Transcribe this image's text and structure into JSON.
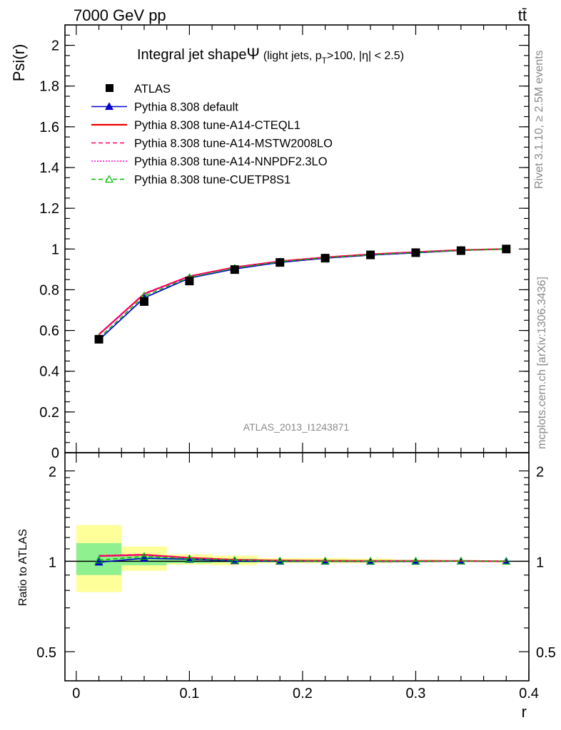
{
  "header": {
    "left": "7000 GeV pp",
    "right": "tt̄"
  },
  "side_labels": {
    "rivet": "Rivet 3.1.10, ≥ 2.5M events",
    "mcplots": "mcplots.cern.ch [arXiv:1306.3436]"
  },
  "watermark": "ATLAS_2013_I1243871",
  "chart_data": [
    {
      "type": "line",
      "title_main": "Integral jet shape",
      "title_symbol": "Ψ",
      "title_cond_a": "(light jets, p",
      "title_cond_sub": "T",
      "title_cond_b": ">100, |η| < 2.5)",
      "ylabel": "Psi(r)",
      "xlim": [
        -0.01,
        0.4
      ],
      "ylim": [
        0,
        2.1
      ],
      "yticks": [
        "0",
        "0.2",
        "0.4",
        "0.6",
        "0.8",
        "1",
        "1.2",
        "1.4",
        "1.6",
        "1.8",
        "2"
      ],
      "legend_position": "top-left",
      "x": [
        0.02,
        0.06,
        0.1,
        0.14,
        0.18,
        0.22,
        0.26,
        0.3,
        0.34,
        0.38
      ],
      "series": [
        {
          "name": "ATLAS",
          "style": "data",
          "color": "#000000",
          "values": [
            0.557,
            0.742,
            0.843,
            0.899,
            0.934,
            0.955,
            0.971,
            0.982,
            0.992,
            1.0
          ]
        },
        {
          "name": "Pythia 8.308 default",
          "style": "solid-triangle",
          "color": "#0000cc",
          "values": [
            0.553,
            0.76,
            0.857,
            0.902,
            0.934,
            0.955,
            0.97,
            0.981,
            0.993,
            1.0
          ]
        },
        {
          "name": "Pythia 8.308 tune-A14-CTEQL1",
          "style": "solid",
          "color": "#ee0000",
          "values": [
            0.58,
            0.78,
            0.866,
            0.91,
            0.94,
            0.959,
            0.974,
            0.985,
            0.995,
            1.0
          ]
        },
        {
          "name": "Pythia 8.308 tune-A14-MSTW2008LO",
          "style": "dashed",
          "color": "#ff0066",
          "values": [
            0.582,
            0.782,
            0.867,
            0.91,
            0.94,
            0.959,
            0.974,
            0.985,
            0.995,
            1.0
          ]
        },
        {
          "name": "Pythia 8.308 tune-A14-NNPDF2.3LO",
          "style": "dotted",
          "color": "#ff00cc",
          "values": [
            0.579,
            0.779,
            0.865,
            0.909,
            0.939,
            0.958,
            0.973,
            0.985,
            0.995,
            1.0
          ]
        },
        {
          "name": "Pythia 8.308 tune-CUETP8S1",
          "style": "dashed-open-triangle",
          "color": "#00bb00",
          "values": [
            0.562,
            0.77,
            0.86,
            0.906,
            0.937,
            0.957,
            0.972,
            0.983,
            0.994,
            1.0
          ]
        }
      ]
    },
    {
      "type": "line",
      "ylabel": "Ratio to ATLAS",
      "xlabel": "r",
      "xlim": [
        -0.01,
        0.4
      ],
      "ylim": [
        0.4,
        2.3
      ],
      "log_y": true,
      "yticks": [
        "0.5",
        "1",
        "2"
      ],
      "xticks": [
        "0",
        "0.1",
        "0.2",
        "0.3",
        "0.4"
      ],
      "bins": [
        [
          0.0,
          0.04
        ],
        [
          0.04,
          0.08
        ],
        [
          0.08,
          0.12
        ],
        [
          0.12,
          0.16
        ],
        [
          0.16,
          0.2
        ],
        [
          0.2,
          0.24
        ],
        [
          0.24,
          0.28
        ],
        [
          0.28,
          0.32
        ],
        [
          0.32,
          0.36
        ],
        [
          0.36,
          0.4
        ]
      ],
      "band_stat": [
        [
          0.9,
          1.15
        ],
        [
          0.97,
          1.04
        ],
        [
          0.985,
          1.03
        ],
        [
          0.99,
          1.02
        ],
        [
          0.993,
          1.013
        ],
        [
          0.995,
          1.01
        ],
        [
          0.996,
          1.008
        ],
        [
          0.997,
          1.006
        ],
        [
          0.998,
          1.004
        ],
        [
          0.999,
          1.002
        ]
      ],
      "band_total": [
        [
          0.79,
          1.32
        ],
        [
          0.93,
          1.12
        ],
        [
          0.975,
          1.055
        ],
        [
          0.97,
          1.045
        ],
        [
          0.985,
          1.025
        ],
        [
          0.985,
          1.025
        ],
        [
          0.985,
          1.02
        ],
        [
          0.99,
          1.012
        ],
        [
          0.995,
          1.008
        ],
        [
          0.998,
          1.004
        ]
      ],
      "band_colors": {
        "stat": "#8ff08f",
        "total": "#ffff99"
      },
      "series": [
        {
          "name": "Pythia 8.308 default",
          "color": "#0000cc",
          "values": [
            0.993,
            1.024,
            1.016,
            1.003,
            1.0,
            1.0,
            0.999,
            0.999,
            1.001,
            1.0
          ]
        },
        {
          "name": "Pythia 8.308 tune-A14-CTEQL1",
          "color": "#ee0000",
          "values": [
            1.041,
            1.051,
            1.027,
            1.012,
            1.006,
            1.004,
            1.003,
            1.003,
            1.003,
            1.0
          ]
        },
        {
          "name": "Pythia 8.308 tune-A14-MSTW2008LO",
          "color": "#ff0066",
          "values": [
            1.045,
            1.054,
            1.028,
            1.012,
            1.006,
            1.004,
            1.003,
            1.003,
            1.003,
            1.0
          ]
        },
        {
          "name": "Pythia 8.308 tune-A14-NNPDF2.3LO",
          "color": "#ff00cc",
          "values": [
            1.04,
            1.05,
            1.026,
            1.011,
            1.005,
            1.003,
            1.002,
            1.003,
            1.003,
            1.0
          ]
        },
        {
          "name": "Pythia 8.308 tune-CUETP8S1",
          "color": "#00bb00",
          "values": [
            1.009,
            1.038,
            1.02,
            1.008,
            1.003,
            1.002,
            1.001,
            1.001,
            1.002,
            1.0
          ]
        }
      ]
    }
  ]
}
